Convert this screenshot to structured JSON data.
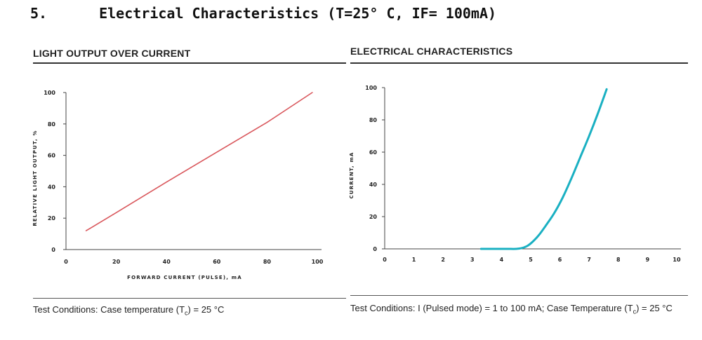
{
  "section": {
    "number": "5.",
    "title": "Electrical Characteristics (T=25° C, IF= 100mA)"
  },
  "chart_data": [
    {
      "type": "line",
      "title": "LIGHT OUTPUT OVER CURRENT",
      "xlabel": "FORWARD CURRENT (PULSE), mA",
      "ylabel": "RELATIVE LIGHT OUTPUT, %",
      "xlim": [
        0,
        100
      ],
      "ylim": [
        0,
        100
      ],
      "xticks": [
        0,
        20,
        40,
        60,
        80,
        100
      ],
      "yticks": [
        0,
        20,
        40,
        60,
        80,
        100
      ],
      "grid": false,
      "color": "#d9575c",
      "series": [
        {
          "name": "Relative light output",
          "x": [
            8,
            20,
            40,
            60,
            80,
            98
          ],
          "y": [
            12,
            23.5,
            43,
            62,
            81,
            100
          ]
        }
      ],
      "conditions": {
        "prefix": "Test Conditions: Case temperature (T",
        "sub": "c",
        "suffix": ") = 25 °C"
      }
    },
    {
      "type": "line",
      "title": "ELECTRICAL CHARACTERISTICS",
      "xlabel": "",
      "ylabel": "CURRENT, mA",
      "xlim": [
        0,
        10
      ],
      "ylim": [
        0,
        100
      ],
      "xticks": [
        0,
        1,
        2,
        3,
        4,
        5,
        6,
        7,
        8,
        9,
        10
      ],
      "yticks": [
        0,
        20,
        40,
        60,
        80,
        100
      ],
      "grid": false,
      "color": "#1ab0c2",
      "series": [
        {
          "name": "Current",
          "x": [
            3.3,
            3.8,
            4.2,
            4.5,
            4.7,
            4.9,
            5.1,
            5.3,
            5.5,
            5.8,
            6.1,
            6.4,
            6.7,
            7.0,
            7.3,
            7.6
          ],
          "y": [
            0,
            0,
            0,
            0,
            0.5,
            2,
            5,
            9,
            14,
            22,
            32,
            44,
            57,
            70,
            84,
            99
          ]
        }
      ],
      "conditions": {
        "prefix": "Test Conditions: I (Pulsed mode) = 1 to 100 mA; Case Temperature (T",
        "sub": "c",
        "suffix": ") = 25 °C"
      }
    }
  ]
}
